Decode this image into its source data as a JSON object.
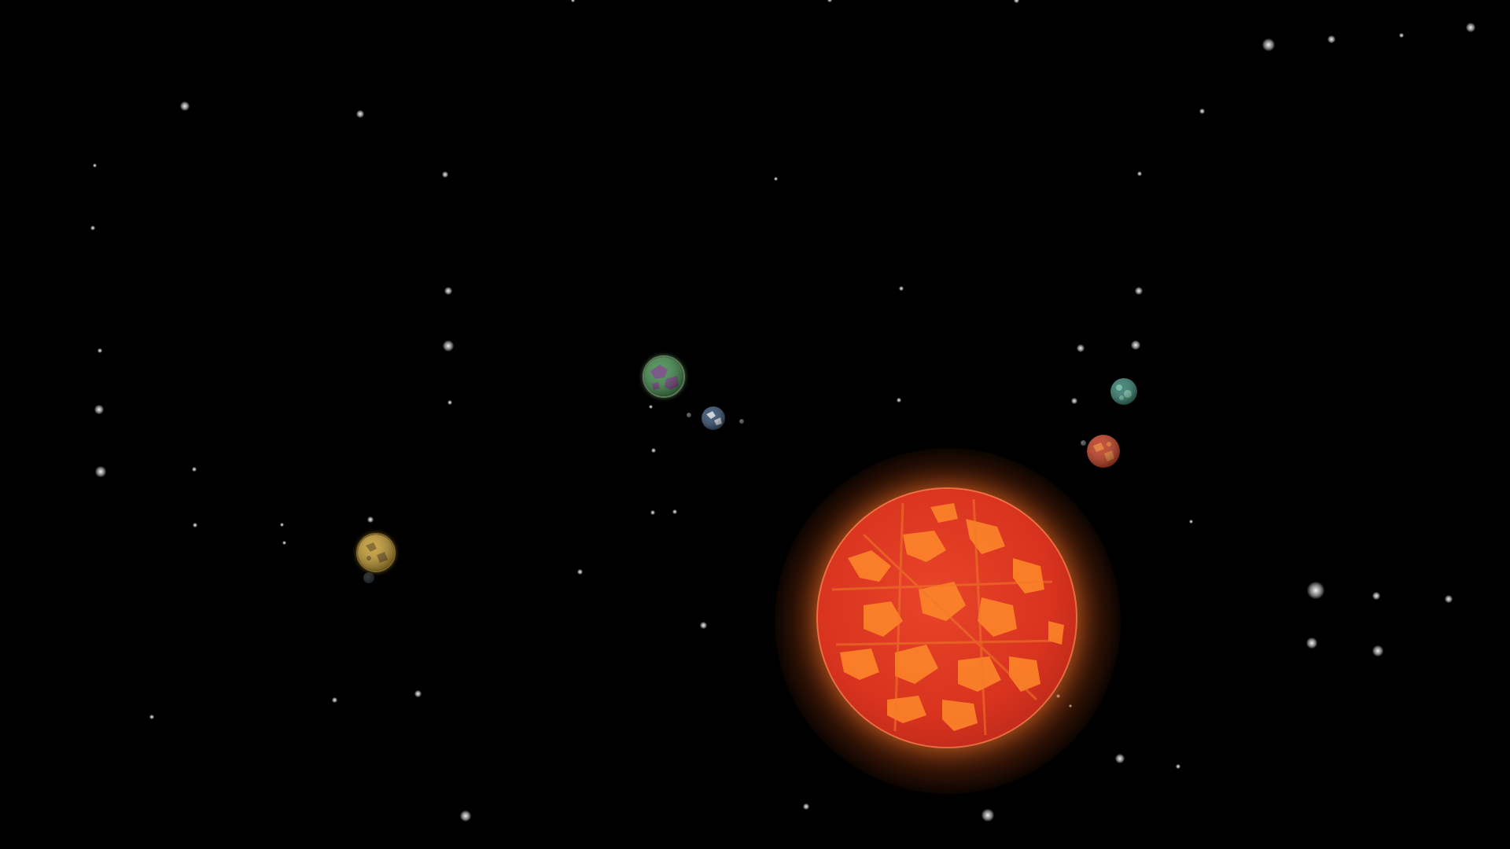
{
  "scene": {
    "background_color": "#000000",
    "sun": {
      "icon": "red-giant-star-icon",
      "colors": {
        "base": "#d8331e",
        "lava": "#ff8a2a",
        "glow": "#ff9a4a"
      }
    },
    "planets": [
      {
        "icon": "green-purple-planet-icon",
        "colors": [
          "#3f8a4a",
          "#6a3f78"
        ]
      },
      {
        "icon": "earthlike-planet-icon",
        "colors": [
          "#2d4a6a",
          "#c9d2d6"
        ]
      },
      {
        "icon": "golden-planet-icon",
        "colors": [
          "#c49a2e",
          "#7a5a18"
        ]
      },
      {
        "icon": "teal-planet-icon",
        "colors": [
          "#2f7a6a",
          "#6ab59a"
        ]
      },
      {
        "icon": "red-rocky-planet-icon",
        "colors": [
          "#c03a1e",
          "#e0752a"
        ]
      }
    ]
  }
}
